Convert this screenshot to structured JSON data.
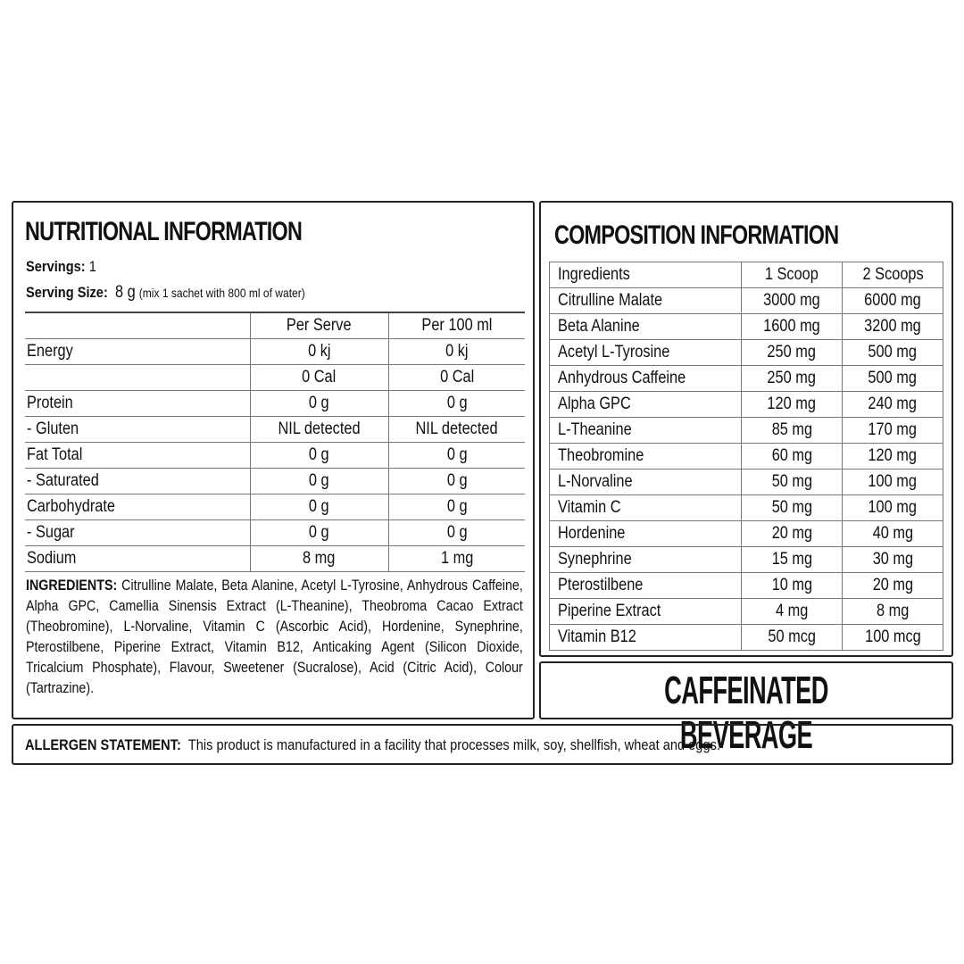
{
  "nutrition": {
    "title": "NUTRITIONAL INFORMATION",
    "servings_label": "Servings:",
    "servings_value": "1",
    "serving_size_label": "Serving Size:",
    "serving_size_value": "8 g",
    "serving_size_note": "(mix 1 sachet with 800 ml of water)",
    "columns": [
      "",
      "Per Serve",
      "Per 100 ml"
    ],
    "rows": [
      [
        "Energy",
        "0 kj",
        "0 kj"
      ],
      [
        "",
        "0 Cal",
        "0 Cal"
      ],
      [
        "Protein",
        "0 g",
        "0 g"
      ],
      [
        "- Gluten",
        "NIL detected",
        "NIL detected"
      ],
      [
        "Fat Total",
        "0 g",
        "0 g"
      ],
      [
        "- Saturated",
        "0 g",
        "0 g"
      ],
      [
        "Carbohydrate",
        "0 g",
        "0 g"
      ],
      [
        "- Sugar",
        "0 g",
        "0 g"
      ],
      [
        "Sodium",
        "8 mg",
        "1 mg"
      ]
    ],
    "ingredients_label": "INGREDIENTS:",
    "ingredients_text": "Citrulline Malate, Beta Alanine, Acetyl L-Tyrosine, Anhydrous Caffeine, Alpha GPC, Camellia Sinensis Extract (L-Theanine), Theobroma Cacao Extract (Theobromine),  L-Norvaline, Vitamin C (Ascorbic Acid), Hordenine, Synephrine, Pterostilbene, Piperine Extract, Vitamin B12, Anticaking Agent (Silicon Dioxide, Tricalcium Phosphate), Flavour, Sweetener (Sucralose), Acid (Citric Acid), Colour (Tartrazine)."
  },
  "composition": {
    "title": "COMPOSITION INFORMATION",
    "columns": [
      "Ingredients",
      "1 Scoop",
      "2 Scoops"
    ],
    "rows": [
      [
        "Citrulline Malate",
        "3000 mg",
        "6000 mg"
      ],
      [
        "Beta Alanine",
        "1600 mg",
        "3200 mg"
      ],
      [
        "Acetyl L-Tyrosine",
        "250 mg",
        "500 mg"
      ],
      [
        "Anhydrous Caffeine",
        "250 mg",
        "500 mg"
      ],
      [
        "Alpha GPC",
        "120 mg",
        "240 mg"
      ],
      [
        "L-Theanine",
        "85 mg",
        "170 mg"
      ],
      [
        "Theobromine",
        "60 mg",
        "120 mg"
      ],
      [
        "L-Norvaline",
        "50 mg",
        "100 mg"
      ],
      [
        "Vitamin C",
        "50 mg",
        "100 mg"
      ],
      [
        "Hordenine",
        "20 mg",
        "40 mg"
      ],
      [
        "Synephrine",
        "15 mg",
        "30 mg"
      ],
      [
        "Pterostilbene",
        "10 mg",
        "20 mg"
      ],
      [
        "Piperine Extract",
        "4 mg",
        "8 mg"
      ],
      [
        "Vitamin B12",
        "50 mcg",
        "100 mcg"
      ]
    ]
  },
  "badge": "CAFFEINATED BEVERAGE",
  "allergen": {
    "label": "ALLERGEN STATEMENT:",
    "text": "This product is manufactured in a facility that processes milk, soy, shellfish, wheat and eggs."
  }
}
